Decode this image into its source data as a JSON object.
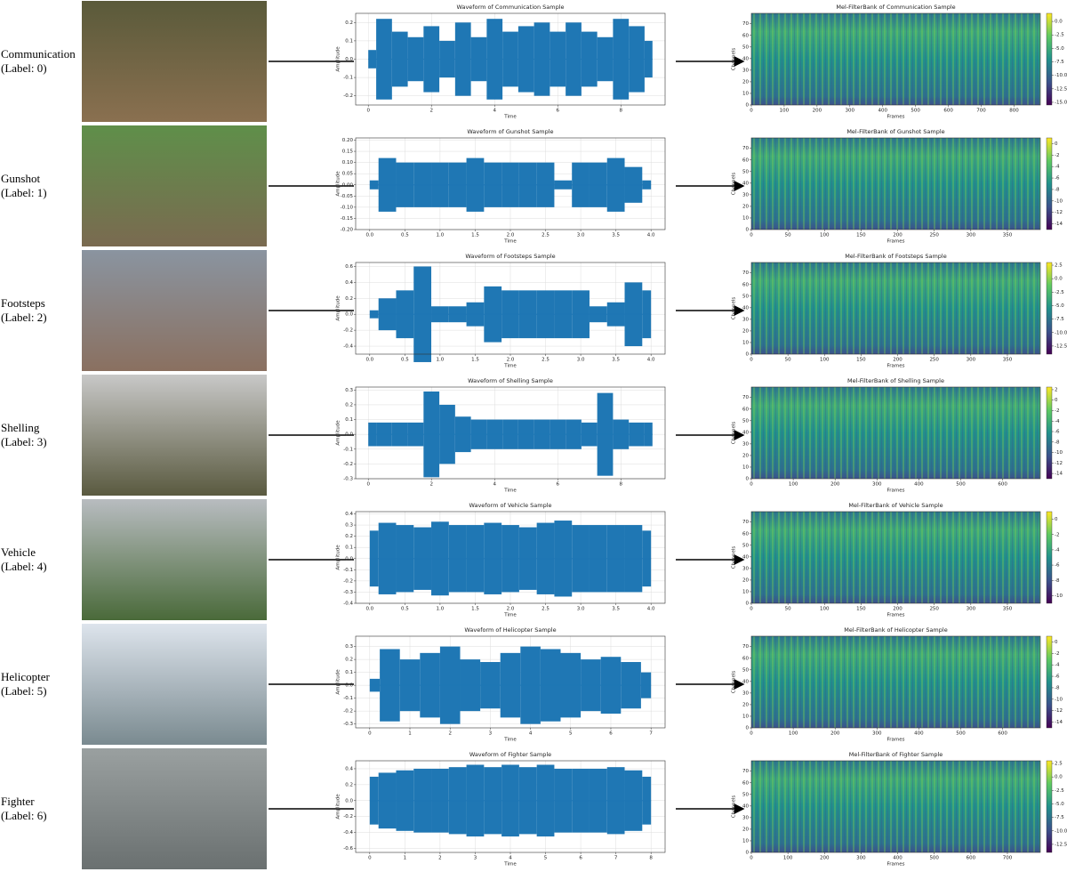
{
  "rows": [
    {
      "name": "Communication",
      "label": "(Label: 0)",
      "waveform": {
        "type": "waveform",
        "title": "Waveform of Communication Sample",
        "xlabel": "Time",
        "ylabel": "Amplitude",
        "grid": true,
        "color": "#1f77b4",
        "xlim": [
          -0.4,
          9.4
        ],
        "xticks": [
          0,
          2,
          4,
          6,
          8
        ],
        "ylim": [
          -0.25,
          0.25
        ],
        "yticks": [
          -0.2,
          -0.1,
          {
            "value": 0,
            "label": "0.0"
          },
          0.1,
          0.2
        ],
        "x": [
          0,
          0.5,
          1,
          1.5,
          2,
          2.5,
          3,
          3.5,
          4,
          4.5,
          5,
          5.5,
          6,
          6.5,
          7,
          7.5,
          8,
          8.5,
          9
        ],
        "values": [
          0.05,
          0.22,
          0.15,
          0.12,
          0.18,
          0.1,
          0.2,
          0.12,
          0.22,
          0.15,
          0.18,
          0.2,
          0.15,
          0.2,
          0.15,
          0.12,
          0.22,
          0.18,
          0.1
        ]
      },
      "spectrogram": {
        "type": "heatmap",
        "title": "Mel-FilterBank of Communication Sample",
        "xlabel": "Frames",
        "ylabel": "Channels",
        "xlim": [
          0,
          880
        ],
        "xticks": [
          0,
          100,
          200,
          300,
          400,
          500,
          600,
          700,
          800
        ],
        "ylim": [
          0,
          79
        ],
        "yticks": [
          0,
          10,
          20,
          30,
          40,
          50,
          60,
          70
        ],
        "clim": [
          -15.5,
          1.5
        ],
        "cticks": [
          {
            "value": 0,
            "label": "0.0"
          },
          -2.5,
          {
            "value": -5,
            "label": "-5.0"
          },
          -7.5,
          {
            "value": -10,
            "label": "-10.0"
          },
          -12.5,
          {
            "value": -15,
            "label": "-15.0"
          }
        ]
      }
    },
    {
      "name": "Gunshot",
      "label": "(Label: 1)",
      "waveform": {
        "type": "waveform",
        "title": "Waveform of Gunshot Sample",
        "xlabel": "Time",
        "ylabel": "Amplitude",
        "grid": true,
        "color": "#1f77b4",
        "xlim": [
          -0.2,
          4.2
        ],
        "xticks": [
          {
            "value": 0,
            "label": "0.0"
          },
          0.5,
          {
            "value": 1,
            "label": "1.0"
          },
          1.5,
          {
            "value": 2,
            "label": "2.0"
          },
          2.5,
          {
            "value": 3,
            "label": "3.0"
          },
          3.5,
          {
            "value": 4,
            "label": "4.0"
          }
        ],
        "ylim": [
          -0.2,
          0.21
        ],
        "yticks": [
          {
            "value": -0.2,
            "label": "-0.20"
          },
          -0.15,
          {
            "value": -0.1,
            "label": "-0.10"
          },
          -0.05,
          {
            "value": 0,
            "label": "0.00"
          },
          0.05,
          {
            "value": 0.1,
            "label": "0.10"
          },
          0.15,
          {
            "value": 0.2,
            "label": "0.20"
          }
        ],
        "x": [
          0,
          0.25,
          0.5,
          0.75,
          1,
          1.25,
          1.5,
          1.75,
          2,
          2.25,
          2.5,
          2.75,
          3,
          3.25,
          3.5,
          3.75,
          4
        ],
        "values": [
          0.02,
          0.12,
          0.1,
          0.1,
          0.1,
          0.1,
          0.12,
          0.1,
          0.1,
          0.1,
          0.1,
          0.02,
          0.1,
          0.1,
          0.12,
          0.08,
          0.02
        ]
      },
      "spectrogram": {
        "type": "heatmap",
        "title": "Mel-FilterBank of Gunshot Sample",
        "xlabel": "Frames",
        "ylabel": "Channels",
        "xlim": [
          0,
          395
        ],
        "xticks": [
          0,
          50,
          100,
          150,
          200,
          250,
          300,
          350
        ],
        "ylim": [
          0,
          79
        ],
        "yticks": [
          0,
          10,
          20,
          30,
          40,
          50,
          60,
          70
        ],
        "clim": [
          -15,
          1
        ],
        "cticks": [
          0,
          -2,
          -4,
          -6,
          -8,
          -10,
          -12,
          -14
        ]
      }
    },
    {
      "name": "Footsteps",
      "label": "(Label: 2)",
      "waveform": {
        "type": "waveform",
        "title": "Waveform of Footsteps Sample",
        "xlabel": "Time",
        "ylabel": "Amplitude",
        "grid": true,
        "color": "#1f77b4",
        "xlim": [
          -0.2,
          4.2
        ],
        "xticks": [
          {
            "value": 0,
            "label": "0.0"
          },
          0.5,
          {
            "value": 1,
            "label": "1.0"
          },
          1.5,
          {
            "value": 2,
            "label": "2.0"
          },
          2.5,
          {
            "value": 3,
            "label": "3.0"
          },
          3.5,
          {
            "value": 4,
            "label": "4.0"
          }
        ],
        "ylim": [
          -0.5,
          0.65
        ],
        "yticks": [
          -0.4,
          -0.2,
          {
            "value": 0,
            "label": "0.0"
          },
          0.2,
          0.4,
          0.6
        ],
        "x": [
          0,
          0.25,
          0.5,
          0.75,
          1,
          1.25,
          1.5,
          1.75,
          2,
          2.25,
          2.5,
          2.75,
          3,
          3.25,
          3.5,
          3.75,
          4
        ],
        "values": [
          0.05,
          0.2,
          0.3,
          0.6,
          0.1,
          0.1,
          0.15,
          0.35,
          0.3,
          0.3,
          0.3,
          0.3,
          0.3,
          0.1,
          0.15,
          0.4,
          0.3
        ]
      },
      "spectrogram": {
        "type": "heatmap",
        "title": "Mel-FilterBank of Footsteps Sample",
        "xlabel": "Frames",
        "ylabel": "Channels",
        "xlim": [
          0,
          395
        ],
        "xticks": [
          0,
          50,
          100,
          150,
          200,
          250,
          300,
          350
        ],
        "ylim": [
          0,
          79
        ],
        "yticks": [
          0,
          10,
          20,
          30,
          40,
          50,
          60,
          70
        ],
        "clim": [
          -14,
          3
        ],
        "cticks": [
          2.5,
          {
            "value": 0,
            "label": "0.0"
          },
          -2.5,
          {
            "value": -5,
            "label": "-5.0"
          },
          -7.5,
          {
            "value": -10,
            "label": "-10.0"
          },
          -12.5
        ]
      }
    },
    {
      "name": "Shelling",
      "label": "(Label: 3)",
      "waveform": {
        "type": "waveform",
        "title": "Waveform of Shelling Sample",
        "xlabel": "Time",
        "ylabel": "Amplitude",
        "grid": true,
        "color": "#1f77b4",
        "xlim": [
          -0.4,
          9.4
        ],
        "xticks": [
          0,
          2,
          4,
          6,
          8
        ],
        "ylim": [
          -0.3,
          0.32
        ],
        "yticks": [
          -0.3,
          -0.2,
          -0.1,
          {
            "value": 0,
            "label": "0.0"
          },
          0.1,
          0.2,
          0.3
        ],
        "x": [
          0,
          0.5,
          1,
          1.5,
          2,
          2.5,
          3,
          3.5,
          4,
          4.5,
          5,
          5.5,
          6,
          6.5,
          7,
          7.5,
          8,
          8.5,
          9
        ],
        "values": [
          0.08,
          0.08,
          0.08,
          0.08,
          0.29,
          0.2,
          0.12,
          0.1,
          0.1,
          0.1,
          0.1,
          0.1,
          0.1,
          0.1,
          0.08,
          0.28,
          0.1,
          0.08,
          0.08
        ]
      },
      "spectrogram": {
        "type": "heatmap",
        "title": "Mel-FilterBank of Shelling Sample",
        "xlabel": "Frames",
        "ylabel": "Channels",
        "xlim": [
          0,
          690
        ],
        "xticks": [
          0,
          100,
          200,
          300,
          400,
          500,
          600
        ],
        "ylim": [
          0,
          79
        ],
        "yticks": [
          0,
          10,
          20,
          30,
          40,
          50,
          60,
          70
        ],
        "clim": [
          -15,
          2.5
        ],
        "cticks": [
          2,
          0,
          -2,
          -4,
          -6,
          -8,
          -10,
          -12,
          -14
        ]
      }
    },
    {
      "name": "Vehicle",
      "label": "(Label: 4)",
      "waveform": {
        "type": "waveform",
        "title": "Waveform of Vehicle Sample",
        "xlabel": "Time",
        "ylabel": "Amplitude",
        "grid": true,
        "color": "#1f77b4",
        "xlim": [
          -0.2,
          4.2
        ],
        "xticks": [
          {
            "value": 0,
            "label": "0.0"
          },
          0.5,
          {
            "value": 1,
            "label": "1.0"
          },
          1.5,
          {
            "value": 2,
            "label": "2.0"
          },
          2.5,
          {
            "value": 3,
            "label": "3.0"
          },
          3.5,
          {
            "value": 4,
            "label": "4.0"
          }
        ],
        "ylim": [
          -0.4,
          0.42
        ],
        "yticks": [
          -0.4,
          -0.3,
          -0.2,
          -0.1,
          {
            "value": 0,
            "label": "0.0"
          },
          0.1,
          0.2,
          0.3,
          0.4
        ],
        "x": [
          0,
          0.25,
          0.5,
          0.75,
          1,
          1.25,
          1.5,
          1.75,
          2,
          2.25,
          2.5,
          2.75,
          3,
          3.25,
          3.5,
          3.75,
          4
        ],
        "values": [
          0.25,
          0.32,
          0.3,
          0.28,
          0.33,
          0.3,
          0.3,
          0.32,
          0.3,
          0.28,
          0.32,
          0.34,
          0.3,
          0.3,
          0.3,
          0.3,
          0.25
        ]
      },
      "spectrogram": {
        "type": "heatmap",
        "title": "Mel-FilterBank of Vehicle Sample",
        "xlabel": "Frames",
        "ylabel": "Channels",
        "xlim": [
          0,
          395
        ],
        "xticks": [
          0,
          50,
          100,
          150,
          200,
          250,
          300,
          350
        ],
        "ylim": [
          0,
          79
        ],
        "yticks": [
          0,
          10,
          20,
          30,
          40,
          50,
          60,
          70
        ],
        "clim": [
          -11,
          1
        ],
        "cticks": [
          0,
          -2,
          -4,
          -6,
          -8,
          -10
        ]
      }
    },
    {
      "name": "Helicopter",
      "label": "(Label: 5)",
      "waveform": {
        "type": "waveform",
        "title": "Waveform of Helicopter Sample",
        "xlabel": "Time",
        "ylabel": "Amplitude",
        "grid": true,
        "color": "#1f77b4",
        "xlim": [
          -0.35,
          7.35
        ],
        "xticks": [
          0,
          1,
          2,
          3,
          4,
          5,
          6,
          7
        ],
        "ylim": [
          -0.33,
          0.38
        ],
        "yticks": [
          -0.3,
          -0.2,
          -0.1,
          {
            "value": 0,
            "label": "0.0"
          },
          0.1,
          0.2,
          0.3
        ],
        "x": [
          0,
          0.5,
          1,
          1.5,
          2,
          2.5,
          3,
          3.5,
          4,
          4.5,
          5,
          5.5,
          6,
          6.5,
          7
        ],
        "values": [
          0.05,
          0.28,
          0.2,
          0.25,
          0.3,
          0.2,
          0.18,
          0.25,
          0.3,
          0.28,
          0.25,
          0.2,
          0.22,
          0.18,
          0.1
        ]
      },
      "spectrogram": {
        "type": "heatmap",
        "title": "Mel-FilterBank of Helicopter Sample",
        "xlabel": "Frames",
        "ylabel": "Channels",
        "xlim": [
          0,
          690
        ],
        "xticks": [
          0,
          100,
          200,
          300,
          400,
          500,
          600
        ],
        "ylim": [
          0,
          79
        ],
        "yticks": [
          0,
          10,
          20,
          30,
          40,
          50,
          60,
          70
        ],
        "clim": [
          -15,
          1
        ],
        "cticks": [
          0,
          -2,
          -4,
          -6,
          -8,
          -10,
          -12,
          -14
        ]
      }
    },
    {
      "name": "Fighter",
      "label": "(Label: 6)",
      "waveform": {
        "type": "waveform",
        "title": "Waveform of Fighter Sample",
        "xlabel": "Time",
        "ylabel": "Amplitude",
        "grid": true,
        "color": "#1f77b4",
        "xlim": [
          -0.4,
          8.4
        ],
        "xticks": [
          0,
          1,
          2,
          3,
          4,
          5,
          6,
          7,
          8
        ],
        "ylim": [
          -0.65,
          0.5
        ],
        "yticks": [
          -0.6,
          -0.4,
          -0.2,
          {
            "value": 0,
            "label": "0.0"
          },
          0.2,
          0.4
        ],
        "x": [
          0,
          0.5,
          1,
          1.5,
          2,
          2.5,
          3,
          3.5,
          4,
          4.5,
          5,
          5.5,
          6,
          6.5,
          7,
          7.5,
          8
        ],
        "values": [
          0.3,
          0.35,
          0.38,
          0.4,
          0.4,
          0.42,
          0.45,
          0.42,
          0.45,
          0.42,
          0.45,
          0.4,
          0.4,
          0.4,
          0.42,
          0.38,
          0.3
        ]
      },
      "spectrogram": {
        "type": "heatmap",
        "title": "Mel-FilterBank of Fighter Sample",
        "xlabel": "Frames",
        "ylabel": "Channels",
        "xlim": [
          0,
          790
        ],
        "xticks": [
          0,
          100,
          200,
          300,
          400,
          500,
          600,
          700
        ],
        "ylim": [
          0,
          79
        ],
        "yticks": [
          0,
          10,
          20,
          30,
          40,
          50,
          60,
          70
        ],
        "clim": [
          -14,
          3
        ],
        "cticks": [
          2.5,
          {
            "value": 0,
            "label": "0.0"
          },
          -2.5,
          {
            "value": -5,
            "label": "-5.0"
          },
          -7.5,
          {
            "value": -10,
            "label": "-10.0"
          },
          -12.5
        ]
      }
    }
  ]
}
